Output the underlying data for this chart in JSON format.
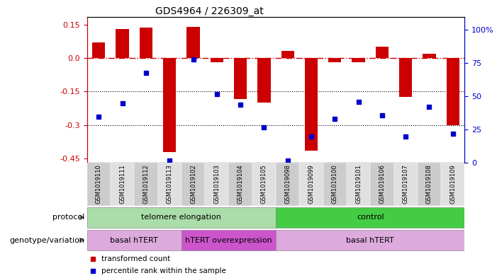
{
  "title": "GDS4964 / 226309_at",
  "samples": [
    "GSM1019110",
    "GSM1019111",
    "GSM1019112",
    "GSM1019113",
    "GSM1019102",
    "GSM1019103",
    "GSM1019104",
    "GSM1019105",
    "GSM1019098",
    "GSM1019099",
    "GSM1019100",
    "GSM1019101",
    "GSM1019106",
    "GSM1019107",
    "GSM1019108",
    "GSM1019109"
  ],
  "bar_values": [
    0.07,
    0.13,
    0.135,
    -0.42,
    0.14,
    -0.02,
    -0.185,
    -0.2,
    0.03,
    -0.415,
    -0.02,
    -0.02,
    0.05,
    -0.175,
    0.02,
    -0.3
  ],
  "dot_values": [
    35,
    45,
    68,
    2,
    78,
    52,
    44,
    27,
    2,
    20,
    33,
    46,
    36,
    20,
    42,
    22
  ],
  "ylim_left": [
    -0.47,
    0.185
  ],
  "ylim_right": [
    0,
    110
  ],
  "yticks_left": [
    -0.45,
    -0.3,
    -0.15,
    0.0,
    0.15
  ],
  "yticks_right": [
    0,
    25,
    50,
    75,
    100
  ],
  "bar_color": "#cc0000",
  "dot_color": "#0000cc",
  "hline_color": "#cc0000",
  "protocol_groups": [
    {
      "label": "telomere elongation",
      "start": 0,
      "end": 8,
      "color": "#aaddaa"
    },
    {
      "label": "control",
      "start": 8,
      "end": 16,
      "color": "#44cc44"
    }
  ],
  "genotype_groups": [
    {
      "label": "basal hTERT",
      "start": 0,
      "end": 4,
      "color": "#ddaadd"
    },
    {
      "label": "hTERT overexpression",
      "start": 4,
      "end": 8,
      "color": "#cc55cc"
    },
    {
      "label": "basal hTERT",
      "start": 8,
      "end": 16,
      "color": "#ddaadd"
    }
  ],
  "legend_items": [
    {
      "label": "transformed count",
      "color": "#cc0000"
    },
    {
      "label": "percentile rank within the sample",
      "color": "#0000cc"
    }
  ],
  "protocol_label": "protocol",
  "genotype_label": "genotype/variation"
}
